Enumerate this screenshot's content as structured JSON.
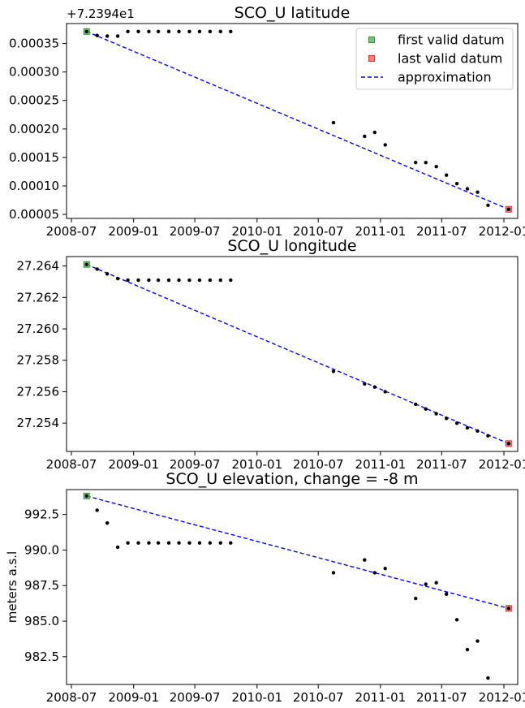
{
  "colors": {
    "first_marker": "#7fbf7f",
    "first_edge": "#2ca02c",
    "last_marker": "#ff8080",
    "last_edge": "#e03030",
    "approximation": "#0000ff",
    "points": "#000000"
  },
  "chart_data": [
    {
      "type": "scatter",
      "title": "SCO_U latitude",
      "ylabel": "",
      "offset_label": "+7.2394e1",
      "x_ticks": [
        "2008-07",
        "2009-01",
        "2009-07",
        "2010-01",
        "2010-07",
        "2011-01",
        "2011-07",
        "2012-01"
      ],
      "y_ticks": [
        5e-05,
        0.0001,
        0.00015,
        0.0002,
        0.00025,
        0.0003,
        0.00035
      ],
      "y_tick_labels": [
        "0.00005",
        "0.00010",
        "0.00015",
        "0.00020",
        "0.00025",
        "0.00030",
        "0.00035"
      ],
      "ylim": [
        4.3e-05,
        0.000385
      ],
      "legend": [
        "first valid datum",
        "last valid datum",
        "approximation"
      ],
      "legend_position": "top-right",
      "points": [
        {
          "x": "2008-08-15",
          "y": 0.000371
        },
        {
          "x": "2008-09-15",
          "y": 0.000364
        },
        {
          "x": "2008-10-15",
          "y": 0.000363
        },
        {
          "x": "2008-11-15",
          "y": 0.000363
        },
        {
          "x": "2008-12-15",
          "y": 0.000371
        },
        {
          "x": "2009-01-15",
          "y": 0.000371
        },
        {
          "x": "2009-02-15",
          "y": 0.000371
        },
        {
          "x": "2009-03-15",
          "y": 0.000371
        },
        {
          "x": "2009-04-15",
          "y": 0.000371
        },
        {
          "x": "2009-05-15",
          "y": 0.000371
        },
        {
          "x": "2009-06-15",
          "y": 0.000371
        },
        {
          "x": "2009-07-15",
          "y": 0.000371
        },
        {
          "x": "2009-08-15",
          "y": 0.000371
        },
        {
          "x": "2009-09-15",
          "y": 0.000371
        },
        {
          "x": "2009-10-15",
          "y": 0.000371
        },
        {
          "x": "2010-08-15",
          "y": 0.000211
        },
        {
          "x": "2010-11-15",
          "y": 0.000187
        },
        {
          "x": "2010-12-15",
          "y": 0.000194
        },
        {
          "x": "2011-01-15",
          "y": 0.000172
        },
        {
          "x": "2011-04-15",
          "y": 0.000141
        },
        {
          "x": "2011-05-15",
          "y": 0.000141
        },
        {
          "x": "2011-06-15",
          "y": 0.000134
        },
        {
          "x": "2011-07-15",
          "y": 0.000119
        },
        {
          "x": "2011-08-15",
          "y": 0.000104
        },
        {
          "x": "2011-09-15",
          "y": 9.5e-05
        },
        {
          "x": "2011-10-15",
          "y": 8.9e-05
        },
        {
          "x": "2011-11-15",
          "y": 6.6e-05
        },
        {
          "x": "2012-01-15",
          "y": 5.9e-05
        }
      ],
      "first_valid": {
        "x": "2008-08-15",
        "y": 0.000371
      },
      "last_valid": {
        "x": "2012-01-15",
        "y": 5.9e-05
      },
      "approximation": [
        {
          "x": "2008-08-15",
          "y": 0.000371
        },
        {
          "x": "2012-01-15",
          "y": 5.9e-05
        }
      ]
    },
    {
      "type": "scatter",
      "title": "SCO_U longitude",
      "ylabel": "",
      "x_ticks": [
        "2008-07",
        "2009-01",
        "2009-07",
        "2010-01",
        "2010-07",
        "2011-01",
        "2011-07",
        "2012-01"
      ],
      "y_ticks": [
        27.254,
        27.256,
        27.258,
        27.26,
        27.262,
        27.264
      ],
      "y_tick_labels": [
        "27.254",
        "27.256",
        "27.258",
        "27.260",
        "27.262",
        "27.264"
      ],
      "ylim": [
        27.2522,
        27.2646
      ],
      "points": [
        {
          "x": "2008-08-15",
          "y": 27.2641
        },
        {
          "x": "2008-09-15",
          "y": 27.2638
        },
        {
          "x": "2008-10-15",
          "y": 27.2635
        },
        {
          "x": "2008-11-15",
          "y": 27.2632
        },
        {
          "x": "2008-12-15",
          "y": 27.2631
        },
        {
          "x": "2009-01-15",
          "y": 27.2631
        },
        {
          "x": "2009-02-15",
          "y": 27.2631
        },
        {
          "x": "2009-03-15",
          "y": 27.2631
        },
        {
          "x": "2009-04-15",
          "y": 27.2631
        },
        {
          "x": "2009-05-15",
          "y": 27.2631
        },
        {
          "x": "2009-06-15",
          "y": 27.2631
        },
        {
          "x": "2009-07-15",
          "y": 27.2631
        },
        {
          "x": "2009-08-15",
          "y": 27.2631
        },
        {
          "x": "2009-09-15",
          "y": 27.2631
        },
        {
          "x": "2009-10-15",
          "y": 27.2631
        },
        {
          "x": "2010-08-15",
          "y": 27.2573
        },
        {
          "x": "2010-11-15",
          "y": 27.2565
        },
        {
          "x": "2010-12-15",
          "y": 27.2563
        },
        {
          "x": "2011-01-15",
          "y": 27.256
        },
        {
          "x": "2011-04-15",
          "y": 27.2552
        },
        {
          "x": "2011-05-15",
          "y": 27.2549
        },
        {
          "x": "2011-06-15",
          "y": 27.2546
        },
        {
          "x": "2011-07-15",
          "y": 27.2543
        },
        {
          "x": "2011-08-15",
          "y": 27.254
        },
        {
          "x": "2011-09-15",
          "y": 27.2537
        },
        {
          "x": "2011-10-15",
          "y": 27.2535
        },
        {
          "x": "2011-11-15",
          "y": 27.2532
        },
        {
          "x": "2012-01-15",
          "y": 27.2527
        }
      ],
      "first_valid": {
        "x": "2008-08-15",
        "y": 27.2641
      },
      "last_valid": {
        "x": "2012-01-15",
        "y": 27.2527
      },
      "approximation": [
        {
          "x": "2008-08-15",
          "y": 27.2641
        },
        {
          "x": "2012-01-15",
          "y": 27.2527
        }
      ]
    },
    {
      "type": "scatter",
      "title": "SCO_U elevation, change = -8 m",
      "ylabel": "meters a.s.l",
      "x_ticks": [
        "2008-07",
        "2009-01",
        "2009-07",
        "2010-01",
        "2010-07",
        "2011-01",
        "2011-07",
        "2012-01"
      ],
      "y_ticks": [
        982.5,
        985.0,
        987.5,
        990.0,
        992.5
      ],
      "y_tick_labels": [
        "982.5",
        "985.0",
        "987.5",
        "990.0",
        "992.5"
      ],
      "ylim": [
        980.55,
        994.25
      ],
      "points": [
        {
          "x": "2008-08-15",
          "y": 993.8
        },
        {
          "x": "2008-09-15",
          "y": 992.8
        },
        {
          "x": "2008-10-15",
          "y": 991.9
        },
        {
          "x": "2008-11-15",
          "y": 990.2
        },
        {
          "x": "2008-12-15",
          "y": 990.5
        },
        {
          "x": "2009-01-15",
          "y": 990.5
        },
        {
          "x": "2009-02-15",
          "y": 990.5
        },
        {
          "x": "2009-03-15",
          "y": 990.5
        },
        {
          "x": "2009-04-15",
          "y": 990.5
        },
        {
          "x": "2009-05-15",
          "y": 990.5
        },
        {
          "x": "2009-06-15",
          "y": 990.5
        },
        {
          "x": "2009-07-15",
          "y": 990.5
        },
        {
          "x": "2009-08-15",
          "y": 990.5
        },
        {
          "x": "2009-09-15",
          "y": 990.5
        },
        {
          "x": "2009-10-15",
          "y": 990.5
        },
        {
          "x": "2010-08-15",
          "y": 988.4
        },
        {
          "x": "2010-11-15",
          "y": 989.3
        },
        {
          "x": "2010-12-15",
          "y": 988.4
        },
        {
          "x": "2011-01-15",
          "y": 988.7
        },
        {
          "x": "2011-04-15",
          "y": 986.6
        },
        {
          "x": "2011-05-15",
          "y": 987.6
        },
        {
          "x": "2011-06-15",
          "y": 987.7
        },
        {
          "x": "2011-07-15",
          "y": 986.9
        },
        {
          "x": "2011-08-15",
          "y": 985.1
        },
        {
          "x": "2011-09-15",
          "y": 983.0
        },
        {
          "x": "2011-10-15",
          "y": 983.6
        },
        {
          "x": "2011-11-15",
          "y": 981.0
        },
        {
          "x": "2012-01-15",
          "y": 985.9
        }
      ],
      "first_valid": {
        "x": "2008-08-15",
        "y": 993.8
      },
      "last_valid": {
        "x": "2012-01-15",
        "y": 985.9
      },
      "approximation": [
        {
          "x": "2008-08-15",
          "y": 993.8
        },
        {
          "x": "2012-01-15",
          "y": 985.9
        }
      ]
    }
  ]
}
